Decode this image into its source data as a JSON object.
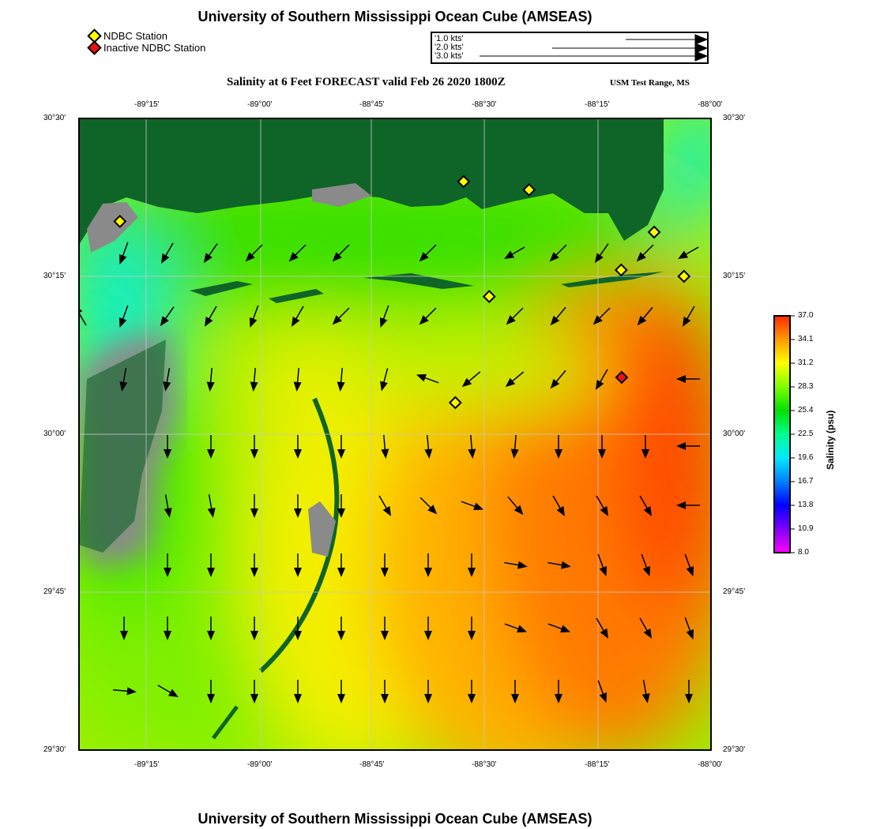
{
  "title": "University of Southern Mississippi Ocean Cube (AMSEAS)",
  "footer_title": "University of Southern Mississippi Ocean Cube (AMSEAS)",
  "legend": {
    "active": "NDBC Station",
    "inactive": "Inactive NDBC Station",
    "active_color": "#ffff00",
    "inactive_color": "#ee1111"
  },
  "vector_scale": [
    "'1.0 kts'",
    "'2.0 kts'",
    "'3.0 kts'"
  ],
  "subtitle": "Salinity at 6 Feet FORECAST valid Feb 26 2020 1800Z",
  "region": "USM Test Range, MS",
  "axes": {
    "lon_labels": [
      "-89°15'",
      "-89°00'",
      "-88°45'",
      "-88°30'",
      "-88°15'",
      "-88°00'"
    ],
    "lat_labels": [
      "30°30'",
      "30°15'",
      "30°00'",
      "29°45'",
      "29°30'"
    ]
  },
  "colorbar": {
    "title": "Salinity (psu)",
    "ticks": [
      "37.0",
      "34.1",
      "31.2",
      "28.3",
      "25.4",
      "22.5",
      "19.6",
      "16.7",
      "13.8",
      "10.9",
      "8.0"
    ],
    "colors": [
      "#ff2a00",
      "#ff9a00",
      "#ffff00",
      "#80ff00",
      "#00e000",
      "#00ff90",
      "#00e8ff",
      "#0080ff",
      "#0000ff",
      "#8000ff",
      "#ff00ff"
    ]
  },
  "colors": {
    "land": "#0f6428",
    "marsh": "#8a8a8a"
  },
  "stations": [
    {
      "lon": -89.29,
      "lat": 30.337,
      "status": "active"
    },
    {
      "lon": -88.54,
      "lat": 30.4,
      "status": "active"
    },
    {
      "lon": -88.397,
      "lat": 30.387,
      "status": "active"
    },
    {
      "lon": -88.124,
      "lat": 30.32,
      "status": "active"
    },
    {
      "lon": -88.196,
      "lat": 30.26,
      "status": "active"
    },
    {
      "lon": -88.059,
      "lat": 30.25,
      "status": "active"
    },
    {
      "lon": -88.484,
      "lat": 30.218,
      "status": "active"
    },
    {
      "lon": -88.558,
      "lat": 30.05,
      "status": "active"
    },
    {
      "lon": -88.195,
      "lat": 30.09,
      "status": "inactive"
    }
  ],
  "current_vectors_heading_deg": [
    [
      null,
      200,
      210,
      215,
      225,
      225,
      225,
      null,
      225,
      null,
      240,
      225,
      215,
      225,
      240
    ],
    [
      330,
      200,
      215,
      210,
      200,
      210,
      225,
      200,
      225,
      null,
      225,
      220,
      225,
      220,
      210
    ],
    [
      null,
      190,
      190,
      185,
      185,
      185,
      185,
      195,
      290,
      230,
      230,
      220,
      210,
      null,
      270
    ],
    [
      null,
      null,
      180,
      180,
      180,
      180,
      180,
      175,
      175,
      175,
      185,
      180,
      180,
      180,
      270
    ],
    [
      null,
      null,
      170,
      170,
      180,
      180,
      180,
      150,
      135,
      110,
      140,
      150,
      150,
      150,
      270
    ],
    [
      null,
      null,
      180,
      180,
      180,
      180,
      180,
      180,
      180,
      180,
      100,
      100,
      160,
      160,
      160
    ],
    [
      null,
      180,
      180,
      180,
      180,
      180,
      180,
      180,
      180,
      180,
      110,
      110,
      150,
      150,
      160
    ],
    [
      null,
      95,
      120,
      180,
      180,
      180,
      180,
      180,
      180,
      180,
      180,
      180,
      160,
      170,
      180
    ]
  ]
}
